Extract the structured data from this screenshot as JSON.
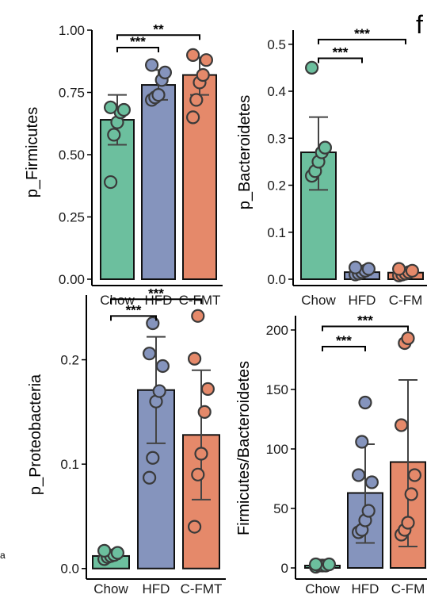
{
  "figure": {
    "panel_letter": "f",
    "stray_label": "a"
  },
  "colors": {
    "Chow": "#6cbf9e",
    "HFD": "#8594bd",
    "C-FMT": "#e5896a"
  },
  "chart_data": [
    {
      "id": "firmicutes",
      "type": "bar",
      "categories": [
        "Chow",
        "HFD",
        "C-FMT"
      ],
      "ylabel": "p_Firmicutes",
      "xlabel": "",
      "ylim": [
        0,
        1.0
      ],
      "yticks": [
        0.0,
        0.25,
        0.5,
        0.75,
        1.0
      ],
      "ytick_labels": [
        "0.00",
        "0.25",
        "0.50",
        "0.75",
        "1.00"
      ],
      "means": [
        0.64,
        0.78,
        0.82
      ],
      "error_low": [
        0.54,
        0.72,
        0.74
      ],
      "error_high": [
        0.74,
        0.84,
        0.89
      ],
      "points": [
        [
          0.39,
          0.58,
          0.63,
          0.67,
          0.68,
          0.69
        ],
        [
          0.72,
          0.73,
          0.74,
          0.8,
          0.83,
          0.86
        ],
        [
          0.65,
          0.72,
          0.79,
          0.82,
          0.88,
          0.9
        ]
      ],
      "brackets": [
        {
          "from": "Chow",
          "to": "HFD",
          "label": "***",
          "y": 0.93
        },
        {
          "from": "Chow",
          "to": "C-FMT",
          "label": "**",
          "y": 0.98
        }
      ]
    },
    {
      "id": "bacteroidetes",
      "type": "bar",
      "categories": [
        "Chow",
        "HFD",
        "C-FM"
      ],
      "ylabel": "p_Bacteroidetes",
      "xlabel": "",
      "ylim": [
        0,
        0.53
      ],
      "yticks": [
        0.0,
        0.1,
        0.2,
        0.3,
        0.4,
        0.5
      ],
      "ytick_labels": [
        "0.0",
        "0.1",
        "0.2",
        "0.3",
        "0.4",
        "0.5"
      ],
      "means": [
        0.27,
        0.015,
        0.014
      ],
      "error_low": [
        0.19,
        0.009,
        0.008
      ],
      "error_high": [
        0.345,
        0.021,
        0.02
      ],
      "points": [
        [
          0.22,
          0.23,
          0.25,
          0.27,
          0.28,
          0.45
        ],
        [
          0.01,
          0.012,
          0.015,
          0.018,
          0.022,
          0.025
        ],
        [
          0.008,
          0.01,
          0.012,
          0.015,
          0.018,
          0.022
        ]
      ],
      "brackets": [
        {
          "from": "Chow",
          "to": "HFD",
          "label": "***",
          "y": 0.47
        },
        {
          "from": "Chow",
          "to": "C-FM",
          "label": "***",
          "y": 0.51
        }
      ]
    },
    {
      "id": "proteobacteria",
      "type": "bar",
      "categories": [
        "Chow",
        "HFD",
        "C-FMT"
      ],
      "ylabel": "p_Proteobacteria",
      "xlabel": "",
      "ylim": [
        -0.004,
        0.262
      ],
      "yticks": [
        0.0,
        0.1,
        0.2
      ],
      "ytick_labels": [
        "0.0",
        "0.1",
        "0.2"
      ],
      "means": [
        0.012,
        0.171,
        0.128
      ],
      "error_low": [
        0.009,
        0.12,
        0.066
      ],
      "error_high": [
        0.015,
        0.222,
        0.19
      ],
      "points": [
        [
          0.009,
          0.011,
          0.012,
          0.013,
          0.015,
          0.017
        ],
        [
          0.087,
          0.106,
          0.16,
          0.17,
          0.194,
          0.206,
          0.235
        ],
        [
          0.04,
          0.09,
          0.11,
          0.15,
          0.172,
          0.201,
          0.242
        ]
      ],
      "brackets": [
        {
          "from": "Chow",
          "to": "HFD",
          "label": "***",
          "y": 0.242
        },
        {
          "from": "Chow",
          "to": "C-FMT",
          "label": "***",
          "y": 0.258
        }
      ]
    },
    {
      "id": "fb_ratio",
      "type": "bar",
      "categories": [
        "Chow",
        "HFD",
        "C-FM"
      ],
      "ylabel": "Firmicutes/Bacteroidetes",
      "xlabel": "",
      "ylim": [
        -4,
        212
      ],
      "yticks": [
        0,
        50,
        100,
        150,
        200
      ],
      "ytick_labels": [
        "0",
        "50",
        "100",
        "150",
        "200"
      ],
      "means": [
        2,
        63,
        89
      ],
      "error_low": [
        1,
        21,
        18
      ],
      "error_high": [
        3,
        104,
        158
      ],
      "points": [
        [
          1,
          2,
          2,
          2,
          3,
          3
        ],
        [
          30,
          32,
          40,
          48,
          72,
          78,
          106,
          139
        ],
        [
          28,
          32,
          38,
          62,
          78,
          120,
          189,
          193
        ]
      ],
      "brackets": [
        {
          "from": "Chow",
          "to": "HFD",
          "label": "***",
          "y": 186
        },
        {
          "from": "Chow",
          "to": "C-FM",
          "label": "***",
          "y": 203
        }
      ]
    }
  ]
}
